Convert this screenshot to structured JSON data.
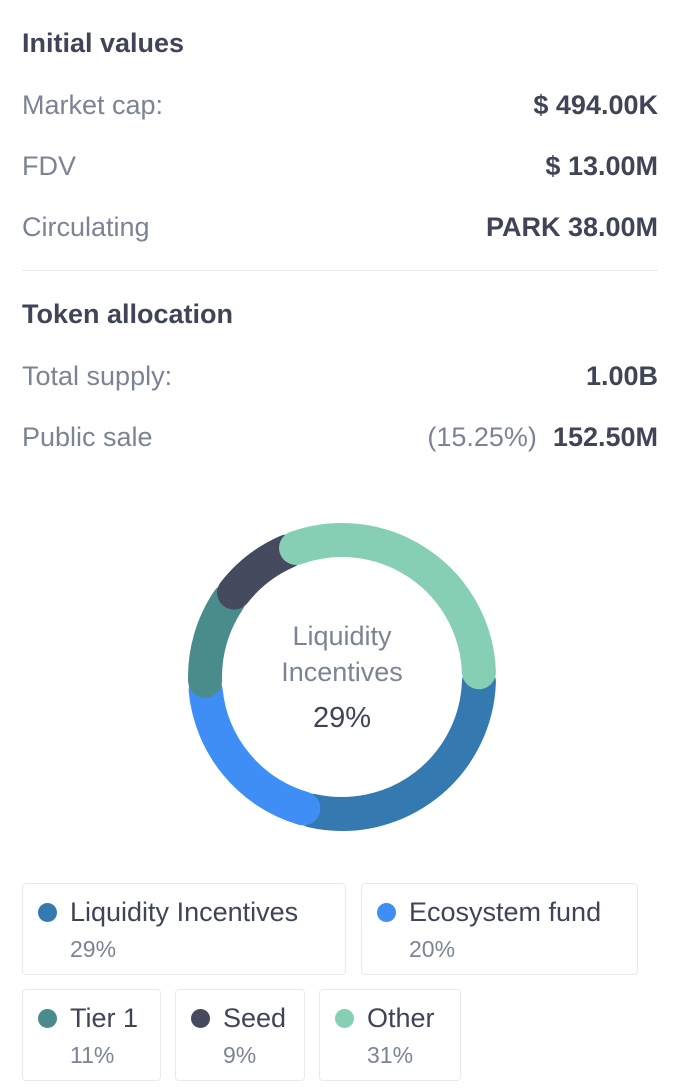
{
  "initial_values": {
    "title": "Initial values",
    "rows": [
      {
        "label": "Market cap:",
        "value": "$ 494.00K"
      },
      {
        "label": "FDV",
        "value": "$ 13.00M"
      },
      {
        "label": "Circulating",
        "value": "PARK 38.00M"
      }
    ]
  },
  "token_allocation": {
    "title": "Token allocation",
    "total_supply": {
      "label": "Total supply:",
      "value": "1.00B"
    },
    "public_sale": {
      "label": "Public sale",
      "percent": "(15.25%)",
      "value": "152.50M"
    }
  },
  "donut": {
    "center_label_line1": "Liquidity",
    "center_label_line2": "Incentives",
    "center_value": "29%"
  },
  "chart_data": {
    "type": "pie",
    "categories": [
      "Liquidity Incentives",
      "Ecosystem fund",
      "Tier 1",
      "Seed",
      "Other"
    ],
    "values": [
      29,
      20,
      11,
      9,
      31
    ],
    "colors": [
      "#3579b1",
      "#3f8ef5",
      "#4a8c8c",
      "#454a5e",
      "#86cfb4"
    ]
  },
  "legend": [
    {
      "name": "Liquidity Incentives",
      "pct": "29%",
      "color": "#3579b1"
    },
    {
      "name": "Ecosystem fund",
      "pct": "20%",
      "color": "#3f8ef5"
    },
    {
      "name": "Tier 1",
      "pct": "11%",
      "color": "#4a8c8c"
    },
    {
      "name": "Seed",
      "pct": "9%",
      "color": "#454a5e"
    },
    {
      "name": "Other",
      "pct": "31%",
      "color": "#86cfb4"
    }
  ]
}
